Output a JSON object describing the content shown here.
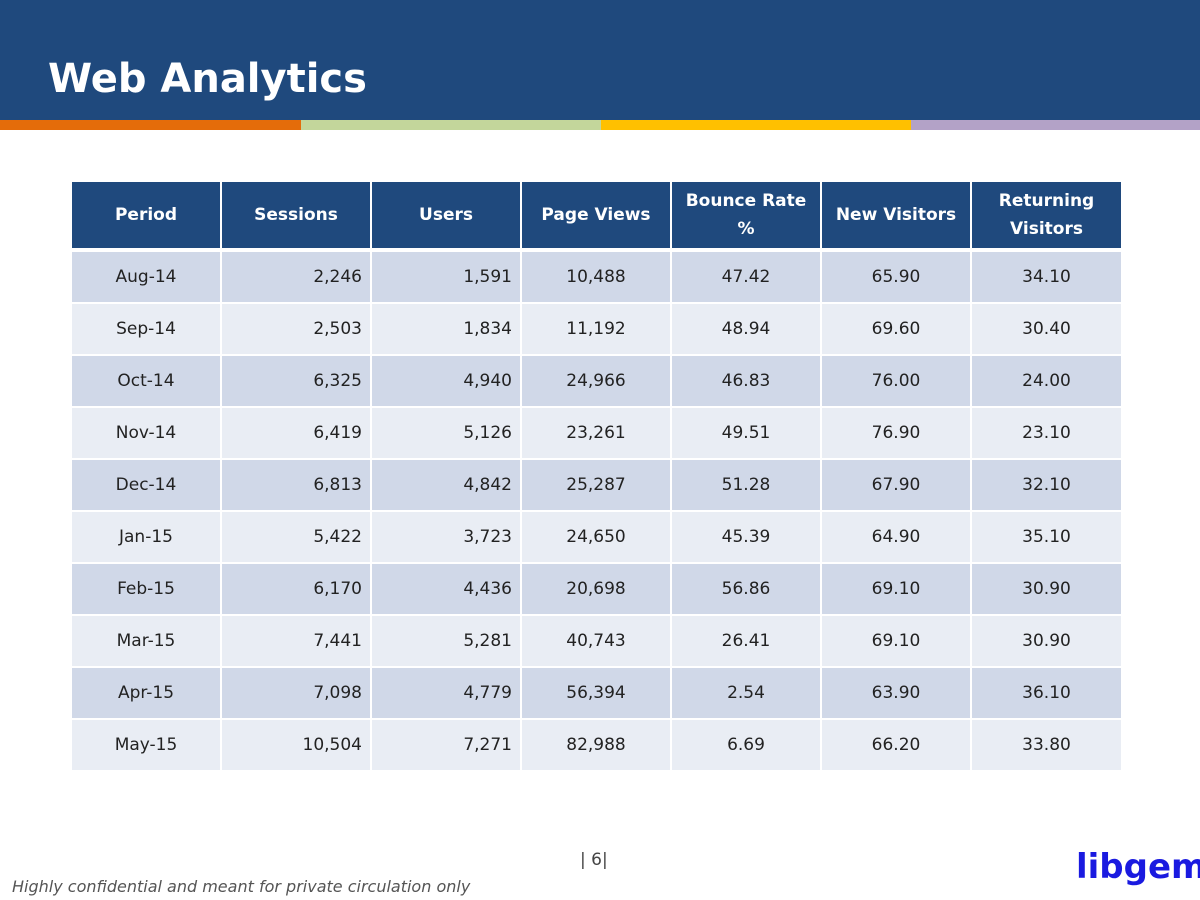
{
  "header": {
    "title": "Web Analytics"
  },
  "colors": {
    "header_bg": "#1f497d",
    "stripe": [
      "#e46c0a",
      "#c3d69b",
      "#ffc000",
      "#b3a2c7"
    ],
    "row_odd": "#d0d8e8",
    "row_even": "#e9edf4",
    "logo": "#1a1ae0"
  },
  "table": {
    "columns": [
      "Period",
      "Sessions",
      "Users",
      "Page Views",
      "Bounce Rate %",
      "New Visitors",
      "Returning Visitors"
    ],
    "rows": [
      [
        "Aug-14",
        "2,246",
        "1,591",
        "10,488",
        "47.42",
        "65.90",
        "34.10"
      ],
      [
        "Sep-14",
        "2,503",
        "1,834",
        "11,192",
        "48.94",
        "69.60",
        "30.40"
      ],
      [
        "Oct-14",
        "6,325",
        "4,940",
        "24,966",
        "46.83",
        "76.00",
        "24.00"
      ],
      [
        "Nov-14",
        "6,419",
        "5,126",
        "23,261",
        "49.51",
        "76.90",
        "23.10"
      ],
      [
        "Dec-14",
        "6,813",
        "4,842",
        "25,287",
        "51.28",
        "67.90",
        "32.10"
      ],
      [
        "Jan-15",
        "5,422",
        "3,723",
        "24,650",
        "45.39",
        "64.90",
        "35.10"
      ],
      [
        "Feb-15",
        "6,170",
        "4,436",
        "20,698",
        "56.86",
        "69.10",
        "30.90"
      ],
      [
        "Mar-15",
        "7,441",
        "5,281",
        "40,743",
        "26.41",
        "69.10",
        "30.90"
      ],
      [
        "Apr-15",
        "7,098",
        "4,779",
        "56,394",
        "2.54",
        "63.90",
        "36.10"
      ],
      [
        "May-15",
        "10,504",
        "7,271",
        "82,988",
        "6.69",
        "66.20",
        "33.80"
      ]
    ]
  },
  "footer": {
    "page_number": "| 6|",
    "confidential": "Highly confidential and meant for private circulation only",
    "logo": "libgem"
  }
}
